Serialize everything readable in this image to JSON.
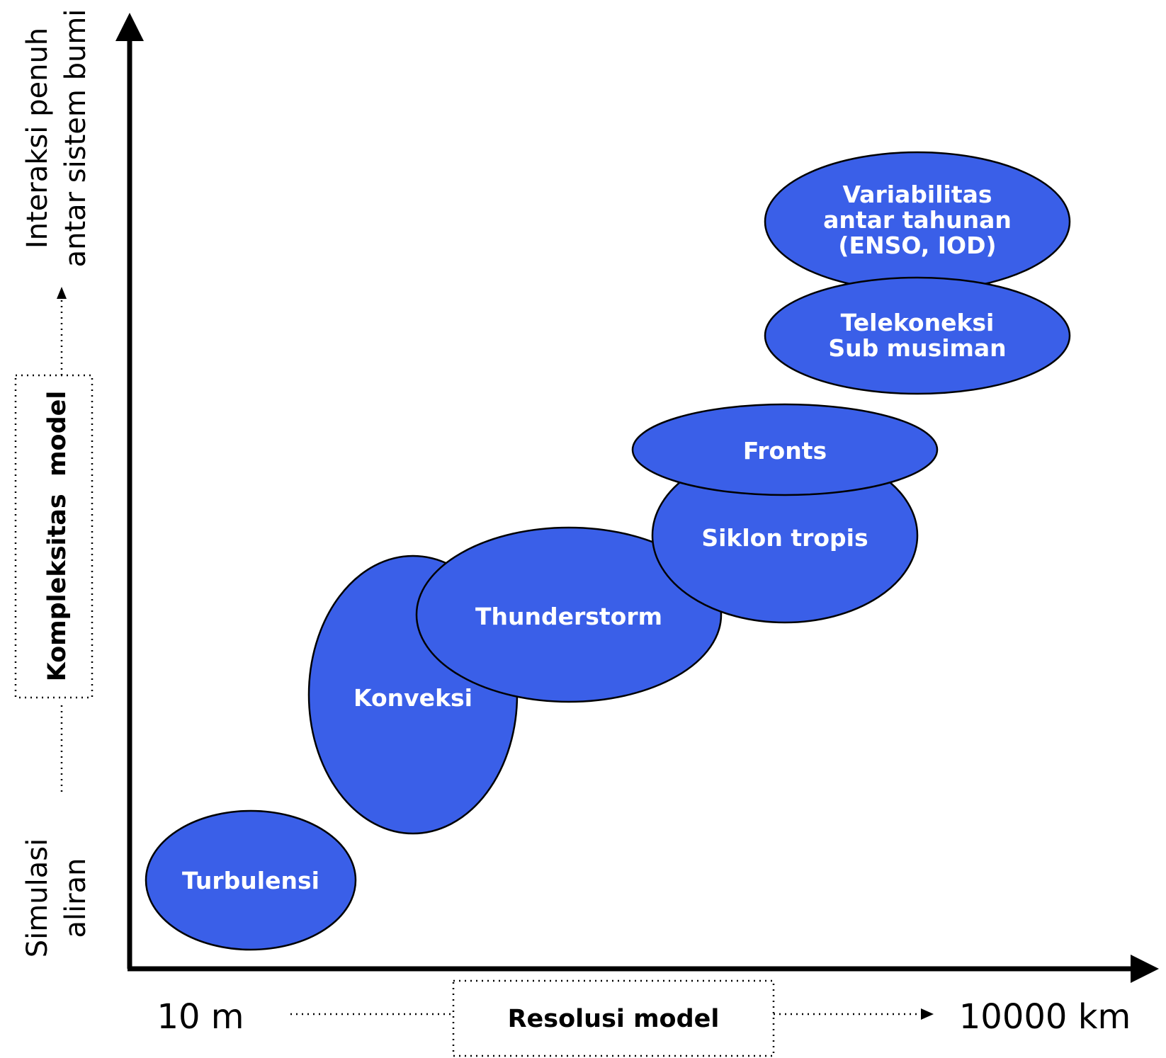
{
  "colors": {
    "bubble": "#3a5fe8",
    "stroke": "#000000",
    "text": "#ffffff"
  },
  "x_axis": {
    "start_label": "10 m",
    "end_label": "10000 km",
    "box_label": "Resolusi model"
  },
  "y_axis": {
    "top_label_line1": "Interaksi penuh",
    "top_label_line2": "antar sistem bumi",
    "bottom_label_line1": "Simulasi",
    "bottom_label_line2": "aliran",
    "box_label": "Kompleksitas  model"
  },
  "bubbles": [
    {
      "id": "turbulensi",
      "lines": [
        "Turbulensi"
      ]
    },
    {
      "id": "konveksi",
      "lines": [
        "Konveksi"
      ]
    },
    {
      "id": "thunderstorm",
      "lines": [
        "Thunderstorm"
      ]
    },
    {
      "id": "siklon",
      "lines": [
        "Siklon tropis"
      ]
    },
    {
      "id": "fronts",
      "lines": [
        "Fronts"
      ]
    },
    {
      "id": "telekoneksi",
      "lines": [
        "Telekoneksi",
        "Sub musiman"
      ]
    },
    {
      "id": "variabilitas",
      "lines": [
        "Variabilitas",
        "antar tahunan",
        "(ENSO, IOD)"
      ]
    }
  ]
}
